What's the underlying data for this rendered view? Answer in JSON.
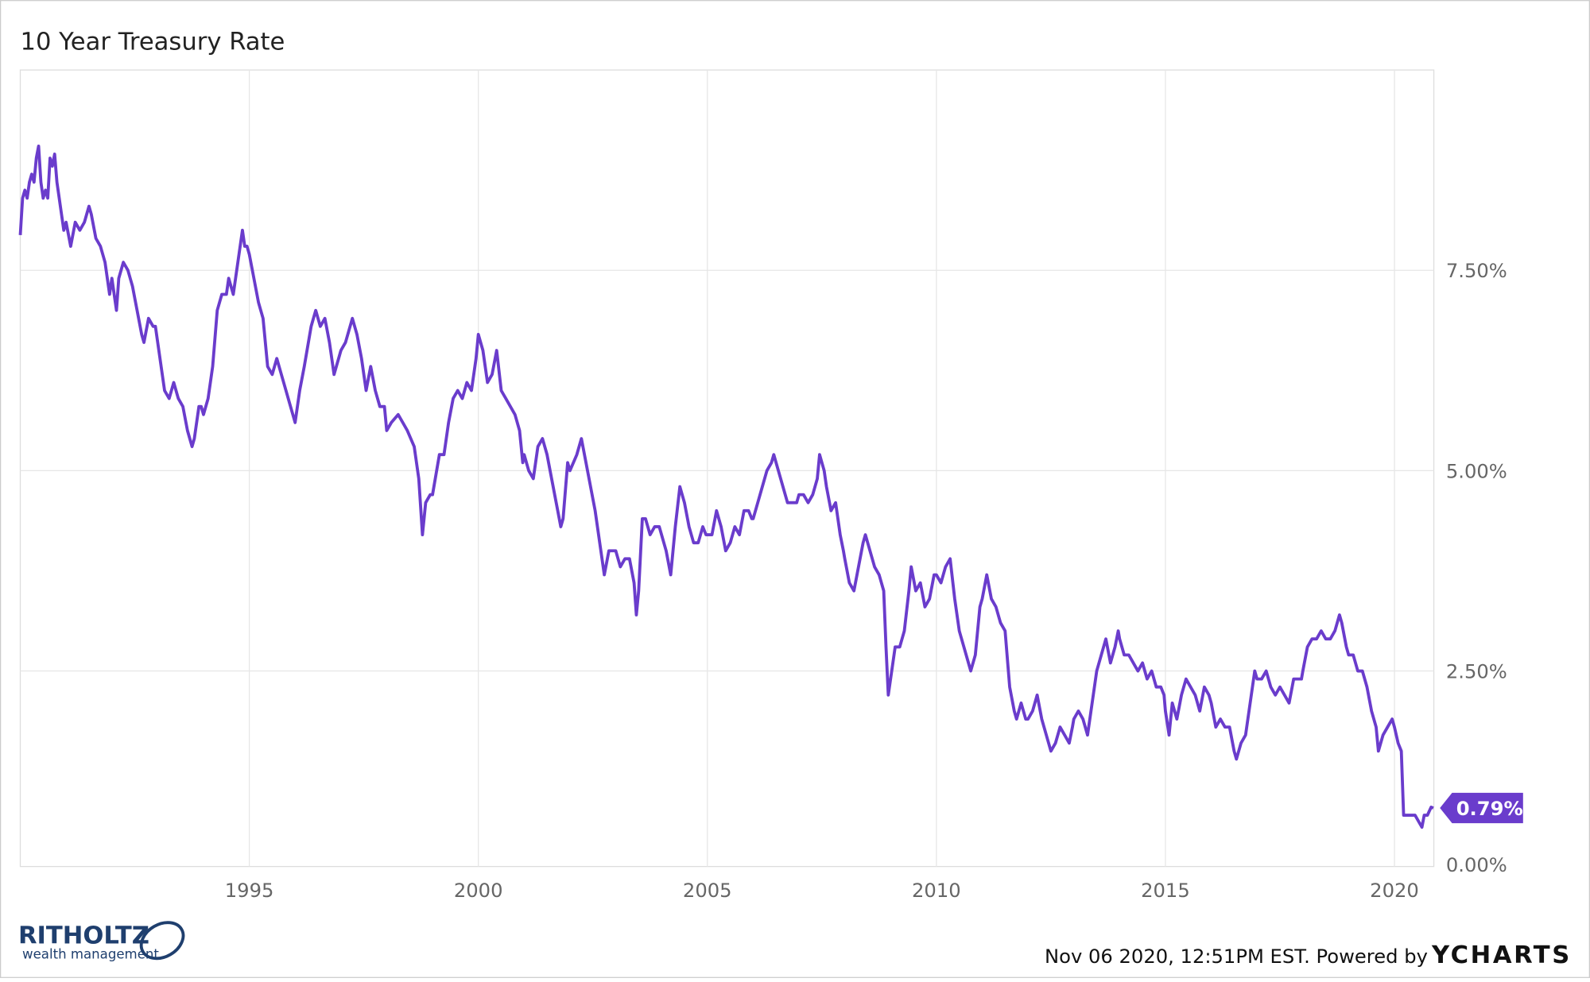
{
  "chart_data": {
    "type": "line",
    "title": "10 Year Treasury Rate",
    "x": [
      1990.0,
      1990.05,
      1990.1,
      1990.15,
      1990.2,
      1990.25,
      1990.3,
      1990.35,
      1990.4,
      1990.45,
      1990.5,
      1990.55,
      1990.6,
      1990.65,
      1990.7,
      1990.75,
      1990.8,
      1990.85,
      1990.9,
      1990.95,
      1991.0,
      1991.1,
      1991.2,
      1991.3,
      1991.4,
      1991.5,
      1991.55,
      1991.65,
      1991.75,
      1991.85,
      1991.95,
      1992.0,
      1992.1,
      1992.15,
      1992.25,
      1992.35,
      1992.45,
      1992.55,
      1992.65,
      1992.7,
      1992.8,
      1992.9,
      1992.95,
      1993.0,
      1993.1,
      1993.15,
      1993.25,
      1993.35,
      1993.45,
      1993.55,
      1993.65,
      1993.75,
      1993.8,
      1993.9,
      1993.95,
      1994.0,
      1994.1,
      1994.2,
      1994.3,
      1994.4,
      1994.5,
      1994.55,
      1994.65,
      1994.75,
      1994.85,
      1994.9,
      1994.95,
      1995.0,
      1995.1,
      1995.2,
      1995.3,
      1995.4,
      1995.5,
      1995.6,
      1995.7,
      1995.8,
      1995.95,
      1996.0,
      1996.1,
      1996.2,
      1996.35,
      1996.45,
      1996.55,
      1996.65,
      1996.75,
      1996.85,
      1996.95,
      1997.0,
      1997.1,
      1997.25,
      1997.35,
      1997.45,
      1997.55,
      1997.65,
      1997.75,
      1997.85,
      1997.95,
      1998.0,
      1998.1,
      1998.25,
      1998.35,
      1998.45,
      1998.6,
      1998.7,
      1998.78,
      1998.85,
      1998.95,
      1999.0,
      1999.15,
      1999.25,
      1999.35,
      1999.45,
      1999.55,
      1999.65,
      1999.75,
      1999.85,
      1999.95,
      2000.0,
      2000.1,
      2000.2,
      2000.3,
      2000.4,
      2000.5,
      2000.6,
      2000.7,
      2000.8,
      2000.9,
      2000.97,
      2001.0,
      2001.1,
      2001.2,
      2001.3,
      2001.4,
      2001.5,
      2001.6,
      2001.7,
      2001.8,
      2001.85,
      2001.95,
      2002.0,
      2002.15,
      2002.25,
      2002.35,
      2002.45,
      2002.55,
      2002.65,
      2002.75,
      2002.85,
      2002.95,
      2003.0,
      2003.1,
      2003.2,
      2003.3,
      2003.4,
      2003.45,
      2003.5,
      2003.58,
      2003.65,
      2003.75,
      2003.85,
      2003.95,
      2004.0,
      2004.1,
      2004.2,
      2004.3,
      2004.4,
      2004.5,
      2004.6,
      2004.7,
      2004.8,
      2004.9,
      2004.97,
      2005.0,
      2005.1,
      2005.2,
      2005.3,
      2005.4,
      2005.5,
      2005.6,
      2005.7,
      2005.8,
      2005.9,
      2005.97,
      2006.0,
      2006.1,
      2006.2,
      2006.3,
      2006.4,
      2006.45,
      2006.55,
      2006.65,
      2006.75,
      2006.85,
      2006.95,
      2007.0,
      2007.1,
      2007.2,
      2007.3,
      2007.4,
      2007.45,
      2007.55,
      2007.6,
      2007.7,
      2007.8,
      2007.9,
      2007.97,
      2008.0,
      2008.1,
      2008.2,
      2008.3,
      2008.4,
      2008.45,
      2008.55,
      2008.65,
      2008.75,
      2008.85,
      2008.9,
      2008.95,
      2009.0,
      2009.1,
      2009.2,
      2009.3,
      2009.4,
      2009.45,
      2009.55,
      2009.65,
      2009.75,
      2009.85,
      2009.95,
      2010.0,
      2010.1,
      2010.2,
      2010.3,
      2010.4,
      2010.5,
      2010.6,
      2010.7,
      2010.75,
      2010.85,
      2010.95,
      2011.0,
      2011.1,
      2011.2,
      2011.3,
      2011.4,
      2011.5,
      2011.6,
      2011.7,
      2011.75,
      2011.85,
      2011.95,
      2012.0,
      2012.1,
      2012.2,
      2012.3,
      2012.4,
      2012.5,
      2012.6,
      2012.7,
      2012.8,
      2012.9,
      2012.97,
      2013.0,
      2013.1,
      2013.2,
      2013.3,
      2013.4,
      2013.5,
      2013.6,
      2013.7,
      2013.8,
      2013.9,
      2013.97,
      2014.0,
      2014.1,
      2014.2,
      2014.3,
      2014.4,
      2014.5,
      2014.6,
      2014.7,
      2014.8,
      2014.9,
      2014.97,
      2015.0,
      2015.08,
      2015.15,
      2015.25,
      2015.35,
      2015.45,
      2015.55,
      2015.65,
      2015.75,
      2015.85,
      2015.95,
      2016.0,
      2016.1,
      2016.2,
      2016.3,
      2016.4,
      2016.5,
      2016.55,
      2016.65,
      2016.75,
      2016.85,
      2016.95,
      2017.0,
      2017.1,
      2017.2,
      2017.3,
      2017.4,
      2017.5,
      2017.6,
      2017.7,
      2017.8,
      2017.9,
      2017.97,
      2018.0,
      2018.1,
      2018.2,
      2018.3,
      2018.4,
      2018.5,
      2018.6,
      2018.7,
      2018.8,
      2018.85,
      2018.95,
      2019.0,
      2019.1,
      2019.2,
      2019.3,
      2019.4,
      2019.5,
      2019.6,
      2019.65,
      2019.75,
      2019.85,
      2019.95,
      2020.0,
      2020.08,
      2020.15,
      2020.2,
      2020.25,
      2020.35,
      2020.45,
      2020.55,
      2020.6,
      2020.65,
      2020.72,
      2020.8,
      2020.85
    ],
    "series": [
      {
        "name": "10 Year Treasury Rate",
        "color": "#6a3ccc",
        "values": [
          7.94,
          8.4,
          8.5,
          8.4,
          8.6,
          8.7,
          8.6,
          8.9,
          9.05,
          8.6,
          8.4,
          8.5,
          8.4,
          8.9,
          8.8,
          8.95,
          8.6,
          8.4,
          8.2,
          8.0,
          8.1,
          7.8,
          8.1,
          8.0,
          8.1,
          8.3,
          8.2,
          7.9,
          7.8,
          7.6,
          7.2,
          7.4,
          7.0,
          7.4,
          7.6,
          7.5,
          7.3,
          7.0,
          6.7,
          6.6,
          6.9,
          6.8,
          6.8,
          6.6,
          6.2,
          6.0,
          5.9,
          6.1,
          5.9,
          5.8,
          5.5,
          5.3,
          5.4,
          5.8,
          5.8,
          5.7,
          5.9,
          6.3,
          7.0,
          7.2,
          7.2,
          7.4,
          7.2,
          7.6,
          8.0,
          7.8,
          7.8,
          7.7,
          7.4,
          7.1,
          6.9,
          6.3,
          6.2,
          6.4,
          6.2,
          6.0,
          5.7,
          5.6,
          6.0,
          6.3,
          6.8,
          7.0,
          6.8,
          6.9,
          6.6,
          6.2,
          6.4,
          6.5,
          6.6,
          6.9,
          6.7,
          6.4,
          6.0,
          6.3,
          6.0,
          5.8,
          5.8,
          5.5,
          5.6,
          5.7,
          5.6,
          5.5,
          5.3,
          4.9,
          4.2,
          4.6,
          4.7,
          4.7,
          5.2,
          5.2,
          5.6,
          5.9,
          6.0,
          5.9,
          6.1,
          6.0,
          6.4,
          6.7,
          6.5,
          6.1,
          6.2,
          6.5,
          6.0,
          5.9,
          5.8,
          5.7,
          5.5,
          5.1,
          5.2,
          5.0,
          4.9,
          5.3,
          5.4,
          5.2,
          4.9,
          4.6,
          4.3,
          4.4,
          5.1,
          5.0,
          5.2,
          5.4,
          5.1,
          4.8,
          4.5,
          4.1,
          3.7,
          4.0,
          4.0,
          4.0,
          3.8,
          3.9,
          3.9,
          3.6,
          3.2,
          3.5,
          4.4,
          4.4,
          4.2,
          4.3,
          4.3,
          4.2,
          4.0,
          3.7,
          4.3,
          4.8,
          4.6,
          4.3,
          4.1,
          4.1,
          4.3,
          4.2,
          4.2,
          4.2,
          4.5,
          4.3,
          4.0,
          4.1,
          4.3,
          4.2,
          4.5,
          4.5,
          4.4,
          4.4,
          4.6,
          4.8,
          5.0,
          5.1,
          5.2,
          5.0,
          4.8,
          4.6,
          4.6,
          4.6,
          4.7,
          4.7,
          4.6,
          4.7,
          4.9,
          5.2,
          5.0,
          4.8,
          4.5,
          4.6,
          4.2,
          4.0,
          3.9,
          3.6,
          3.5,
          3.8,
          4.1,
          4.2,
          4.0,
          3.8,
          3.7,
          3.5,
          2.8,
          2.2,
          2.4,
          2.8,
          2.8,
          3.0,
          3.5,
          3.8,
          3.5,
          3.6,
          3.3,
          3.4,
          3.7,
          3.7,
          3.6,
          3.8,
          3.9,
          3.4,
          3.0,
          2.8,
          2.6,
          2.5,
          2.7,
          3.3,
          3.4,
          3.7,
          3.4,
          3.3,
          3.1,
          3.0,
          2.3,
          2.0,
          1.9,
          2.1,
          1.9,
          1.9,
          2.0,
          2.2,
          1.9,
          1.7,
          1.5,
          1.6,
          1.8,
          1.7,
          1.6,
          1.8,
          1.9,
          2.0,
          1.9,
          1.7,
          2.1,
          2.5,
          2.7,
          2.9,
          2.6,
          2.8,
          3.0,
          2.9,
          2.7,
          2.7,
          2.6,
          2.5,
          2.6,
          2.4,
          2.5,
          2.3,
          2.3,
          2.2,
          2.0,
          1.7,
          2.1,
          1.9,
          2.2,
          2.4,
          2.3,
          2.2,
          2.0,
          2.3,
          2.2,
          2.1,
          1.8,
          1.9,
          1.8,
          1.8,
          1.5,
          1.4,
          1.6,
          1.7,
          2.1,
          2.5,
          2.4,
          2.4,
          2.5,
          2.3,
          2.2,
          2.3,
          2.2,
          2.1,
          2.4,
          2.4,
          2.4,
          2.5,
          2.8,
          2.9,
          2.9,
          3.0,
          2.9,
          2.9,
          3.0,
          3.2,
          3.1,
          2.8,
          2.7,
          2.7,
          2.5,
          2.5,
          2.3,
          2.0,
          1.8,
          1.5,
          1.7,
          1.8,
          1.9,
          1.8,
          1.6,
          1.5,
          0.7,
          0.7,
          0.7,
          0.7,
          0.6,
          0.55,
          0.7,
          0.7,
          0.8,
          0.79
        ]
      }
    ],
    "last_value": {
      "value": 0.79,
      "label": "0.79%"
    },
    "xlim": [
      1990.0,
      2020.86
    ],
    "xticks": [
      1995,
      2000,
      2005,
      2010,
      2015,
      2020
    ],
    "ylim": [
      0.06,
      10.0
    ],
    "yticks": [
      {
        "value": 0,
        "label": "0.00%"
      },
      {
        "value": 2.5,
        "label": "2.50%"
      },
      {
        "value": 5,
        "label": "5.00%"
      },
      {
        "value": 7.5,
        "label": "7.50%"
      }
    ],
    "grid": true,
    "source": "Nov 06 2020, 12:51PM EST. Powered by",
    "source_brand": "YCHARTS",
    "logo_text": "RITHOLTZ",
    "logo_subtext": "wealth management"
  }
}
